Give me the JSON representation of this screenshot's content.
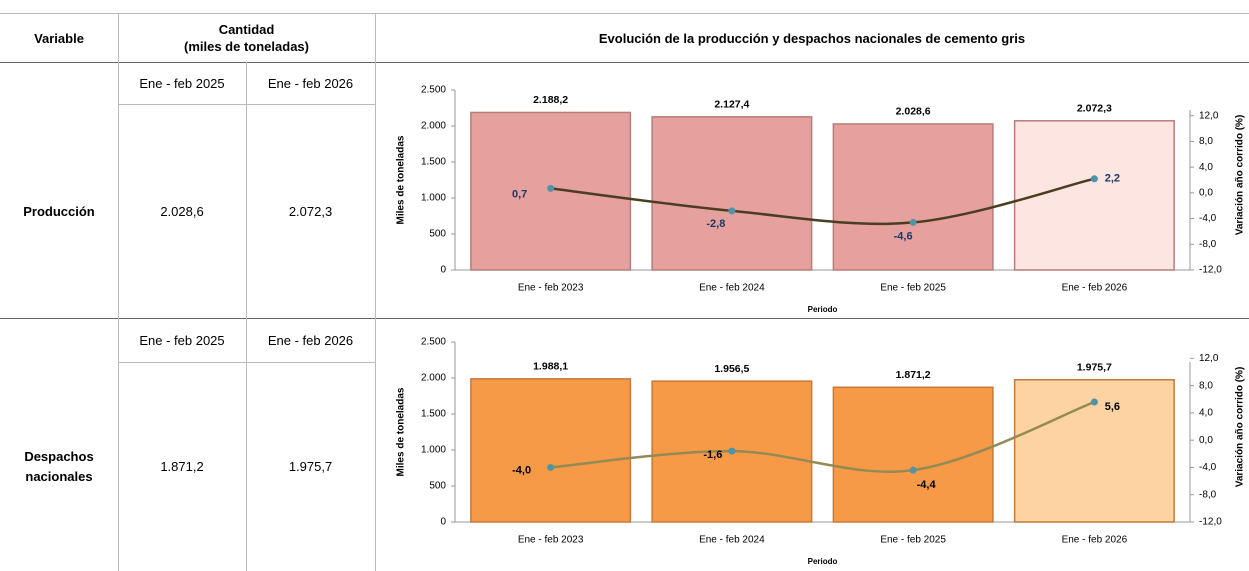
{
  "table": {
    "header": {
      "variable": "Variable",
      "quantity": [
        "Cantidad",
        "(miles de toneladas)"
      ],
      "chart": "Evolución de la producción y despachos nacionales de cemento gris"
    },
    "rows": [
      {
        "label": "Producción",
        "periods": [
          "Ene - feb 2025",
          "Ene - feb 2026"
        ],
        "values": [
          "2.028,6",
          "2.072,3"
        ]
      },
      {
        "label": "Despachos nacionales",
        "periods": [
          "Ene - feb 2025",
          "Ene - feb 2026"
        ],
        "values": [
          "1.871,2",
          "1.975,7"
        ]
      }
    ]
  },
  "chart_data": [
    {
      "type": "combo",
      "xlabel": "Periodo",
      "ylabel": "Miles de toneladas",
      "y2label": "Variación año corrido (%)",
      "categories": [
        "Ene - feb 2023",
        "Ene - feb 2024",
        "Ene - feb 2025",
        "Ene - feb 2026"
      ],
      "ylim": [
        0,
        2500
      ],
      "yticks": [
        0,
        500,
        {
          "value": 1000,
          "label": "1.000"
        },
        {
          "value": 1500,
          "label": "1.500"
        },
        {
          "value": 2000,
          "label": "2.000"
        },
        {
          "value": 2500,
          "label": "2.500"
        }
      ],
      "y2lim": [
        -12,
        16
      ],
      "y2ticks": [
        {
          "value": -12,
          "label": "-12,0"
        },
        {
          "value": -8,
          "label": "-8,0"
        },
        {
          "value": -4,
          "label": "-4,0"
        },
        {
          "value": 0,
          "label": "0,0"
        },
        {
          "value": 4,
          "label": "4,0"
        },
        {
          "value": 8,
          "label": "8,0"
        },
        {
          "value": 12,
          "label": "12,0"
        }
      ],
      "series": [
        {
          "type": "bar",
          "colors": [
            "#e6a09e",
            "#e6a09e",
            "#e6a09e",
            "#fde5e1"
          ],
          "border": "#b87c7a",
          "values": [
            2188.2,
            2127.4,
            2028.6,
            2072.3
          ],
          "value_labels": [
            "2.188,2",
            "2.127,4",
            "2.028,6",
            "2.072,3"
          ]
        },
        {
          "type": "line",
          "axis": "y2",
          "color": "#4b3d20",
          "marker_color": "#4f94a8",
          "label_color": "#1f3864",
          "values": [
            0.7,
            -2.8,
            -4.6,
            2.2
          ],
          "value_labels": [
            "0,7",
            "-2,8",
            "-4,6",
            "2,2"
          ]
        }
      ]
    },
    {
      "type": "combo",
      "xlabel": "Periodo",
      "ylabel": "Miles de toneladas",
      "y2label": "Variación año corrido (%)",
      "categories": [
        "Ene - feb 2023",
        "Ene - feb 2024",
        "Ene - feb 2025",
        "Ene - feb 2026"
      ],
      "ylim": [
        0,
        2500
      ],
      "yticks": [
        0,
        500,
        {
          "value": 1000,
          "label": "1.000"
        },
        {
          "value": 1500,
          "label": "1.500"
        },
        {
          "value": 2000,
          "label": "2.000"
        },
        {
          "value": 2500,
          "label": "2.500"
        }
      ],
      "y2lim": [
        -12,
        14.4
      ],
      "y2ticks": [
        {
          "value": -12,
          "label": "-12,0"
        },
        {
          "value": -8,
          "label": "-8,0"
        },
        {
          "value": -4,
          "label": "-4,0"
        },
        {
          "value": 0,
          "label": "0,0"
        },
        {
          "value": 4,
          "label": "4,0"
        },
        {
          "value": 8,
          "label": "8,0"
        },
        {
          "value": 12,
          "label": "12,0"
        }
      ],
      "series": [
        {
          "type": "bar",
          "colors": [
            "#f79a48",
            "#f79a48",
            "#f79a48",
            "#fcd3a1"
          ],
          "border": "#c8793a",
          "values": [
            1988.1,
            1956.5,
            1871.2,
            1975.7
          ],
          "value_labels": [
            "1.988,1",
            "1.956,5",
            "1.871,2",
            "1.975,7"
          ]
        },
        {
          "type": "line",
          "axis": "y2",
          "color": "#948a54",
          "marker_color": "#4f94a8",
          "label_color": "#000000",
          "values": [
            -4.0,
            -1.6,
            -4.4,
            5.6
          ],
          "value_labels": [
            "-4,0",
            "-1,6",
            "-4,4",
            "5,6"
          ]
        }
      ]
    }
  ]
}
